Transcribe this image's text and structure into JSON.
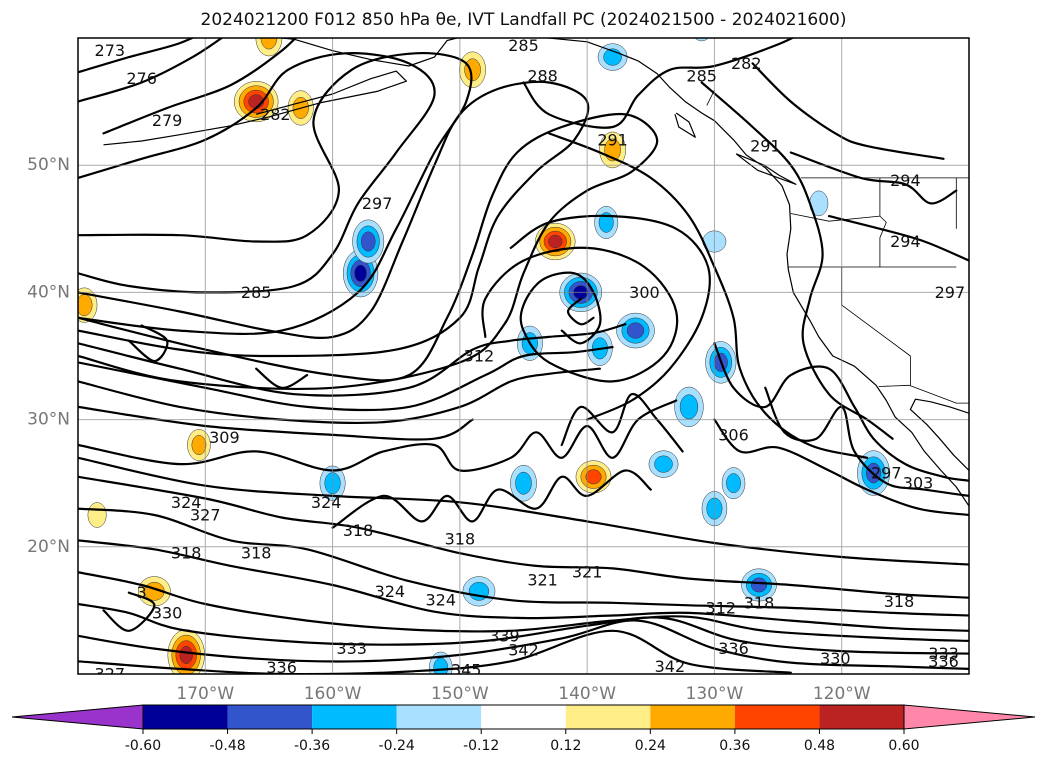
{
  "title": "2024021200 F012 850 hPa θe, IVT Landfall PC (2024021500 - 2024021600)",
  "map": {
    "projection": "PlateCarree",
    "extent": {
      "lon": [
        -180,
        -110
      ],
      "lat": [
        10,
        60
      ]
    },
    "lat_ticks": [
      {
        "value": 50,
        "label": "50°N"
      },
      {
        "value": 40,
        "label": "40°N"
      },
      {
        "value": 30,
        "label": "30°N"
      },
      {
        "value": 20,
        "label": "20°N"
      }
    ],
    "lon_ticks": [
      {
        "value": -170,
        "label": "170°W"
      },
      {
        "value": -160,
        "label": "160°W"
      },
      {
        "value": -150,
        "label": "150°W"
      },
      {
        "value": -140,
        "label": "140°W"
      },
      {
        "value": -130,
        "label": "130°W"
      },
      {
        "value": -120,
        "label": "120°W"
      }
    ],
    "grid": true,
    "contour_labels": [
      {
        "text": "273",
        "lon": -177.5,
        "lat": 59.0
      },
      {
        "text": "276",
        "lon": -175.0,
        "lat": 56.8
      },
      {
        "text": "279",
        "lon": -173.0,
        "lat": 53.5
      },
      {
        "text": "282",
        "lon": -164.5,
        "lat": 54.0
      },
      {
        "text": "285",
        "lon": -145.0,
        "lat": 59.4
      },
      {
        "text": "288",
        "lon": -143.5,
        "lat": 57.0
      },
      {
        "text": "285",
        "lon": -131.0,
        "lat": 57.0
      },
      {
        "text": "282",
        "lon": -127.5,
        "lat": 58.0
      },
      {
        "text": "291",
        "lon": -138.0,
        "lat": 52.0
      },
      {
        "text": "291",
        "lon": -126.0,
        "lat": 51.5
      },
      {
        "text": "294",
        "lon": -115.0,
        "lat": 48.8
      },
      {
        "text": "294",
        "lon": -115.0,
        "lat": 44.0
      },
      {
        "text": "297",
        "lon": -156.5,
        "lat": 47.0
      },
      {
        "text": "297",
        "lon": -111.5,
        "lat": 40.0
      },
      {
        "text": "285",
        "lon": -166.0,
        "lat": 40.0
      },
      {
        "text": "300",
        "lon": -135.5,
        "lat": 40.0
      },
      {
        "text": "312",
        "lon": -148.5,
        "lat": 35.0
      },
      {
        "text": "309",
        "lon": -168.5,
        "lat": 28.6
      },
      {
        "text": "306",
        "lon": -128.5,
        "lat": 28.8
      },
      {
        "text": "297",
        "lon": -116.5,
        "lat": 25.8
      },
      {
        "text": "303",
        "lon": -114.0,
        "lat": 25.0
      },
      {
        "text": "324",
        "lon": -171.5,
        "lat": 23.5
      },
      {
        "text": "327",
        "lon": -170.0,
        "lat": 22.5
      },
      {
        "text": "324",
        "lon": -160.5,
        "lat": 23.5
      },
      {
        "text": "318",
        "lon": -158.0,
        "lat": 21.3
      },
      {
        "text": "318",
        "lon": -150.0,
        "lat": 20.6
      },
      {
        "text": "318",
        "lon": -171.5,
        "lat": 19.5
      },
      {
        "text": "318",
        "lon": -166.0,
        "lat": 19.5
      },
      {
        "text": "321",
        "lon": -143.5,
        "lat": 17.4
      },
      {
        "text": "321",
        "lon": -140.0,
        "lat": 18.0
      },
      {
        "text": "324",
        "lon": -155.5,
        "lat": 16.5
      },
      {
        "text": "324",
        "lon": -151.5,
        "lat": 15.8
      },
      {
        "text": "330",
        "lon": -173.0,
        "lat": 14.8
      },
      {
        "text": "312",
        "lon": -129.5,
        "lat": 15.2
      },
      {
        "text": "318",
        "lon": -126.5,
        "lat": 15.6
      },
      {
        "text": "318",
        "lon": -115.5,
        "lat": 15.7
      },
      {
        "text": "339",
        "lon": -146.5,
        "lat": 13.0
      },
      {
        "text": "342",
        "lon": -145.0,
        "lat": 11.9
      },
      {
        "text": "333",
        "lon": -158.5,
        "lat": 12.0
      },
      {
        "text": "336",
        "lon": -128.5,
        "lat": 12.0
      },
      {
        "text": "336",
        "lon": -164.0,
        "lat": 10.5
      },
      {
        "text": "345",
        "lon": -149.5,
        "lat": 10.3
      },
      {
        "text": "342",
        "lon": -133.5,
        "lat": 10.6
      },
      {
        "text": "330",
        "lon": -120.5,
        "lat": 11.2
      },
      {
        "text": "333",
        "lon": -112.0,
        "lat": 11.6
      },
      {
        "text": "336",
        "lon": -112.0,
        "lat": 11.0
      },
      {
        "text": "327",
        "lon": -177.5,
        "lat": 10.0
      },
      {
        "text": "3",
        "lon": -175.0,
        "lat": 16.4
      }
    ],
    "ivt_pc_patches": [
      {
        "lon": -157.8,
        "lat": 41.5,
        "value": -0.55
      },
      {
        "lon": -157.2,
        "lat": 44.0,
        "value": -0.4
      },
      {
        "lon": -140.5,
        "lat": 40.0,
        "value": -0.52
      },
      {
        "lon": -144.5,
        "lat": 36.0,
        "value": -0.35
      },
      {
        "lon": -139.0,
        "lat": 35.6,
        "value": -0.28
      },
      {
        "lon": -136.2,
        "lat": 37.0,
        "value": -0.45
      },
      {
        "lon": -129.5,
        "lat": 34.5,
        "value": -0.46
      },
      {
        "lon": -132.0,
        "lat": 31.0,
        "value": -0.35
      },
      {
        "lon": -134.0,
        "lat": 26.5,
        "value": -0.3
      },
      {
        "lon": -128.5,
        "lat": 25.0,
        "value": -0.3
      },
      {
        "lon": -130.0,
        "lat": 23.0,
        "value": -0.28
      },
      {
        "lon": -126.5,
        "lat": 17.0,
        "value": -0.4
      },
      {
        "lon": -160.0,
        "lat": 25.0,
        "value": -0.35
      },
      {
        "lon": -145.0,
        "lat": 25.0,
        "value": -0.3
      },
      {
        "lon": -148.5,
        "lat": 16.5,
        "value": -0.35
      },
      {
        "lon": -151.5,
        "lat": 10.5,
        "value": -0.3
      },
      {
        "lon": -117.5,
        "lat": 25.8,
        "value": -0.42
      },
      {
        "lon": -138.0,
        "lat": 58.5,
        "value": -0.3
      },
      {
        "lon": -131.0,
        "lat": 61.0,
        "value": -0.3
      },
      {
        "lon": -138.5,
        "lat": 45.5,
        "value": -0.25
      },
      {
        "lon": -130.0,
        "lat": 44.0,
        "value": -0.2
      },
      {
        "lon": -121.8,
        "lat": 47.0,
        "value": -0.2
      },
      {
        "lon": -165.0,
        "lat": 60.0,
        "value": 0.3
      },
      {
        "lon": -166.0,
        "lat": 55.0,
        "value": 0.55
      },
      {
        "lon": -162.5,
        "lat": 54.5,
        "value": 0.35
      },
      {
        "lon": -149.0,
        "lat": 57.5,
        "value": 0.3
      },
      {
        "lon": -142.5,
        "lat": 44.0,
        "value": 0.48
      },
      {
        "lon": -179.5,
        "lat": 39.0,
        "value": 0.35
      },
      {
        "lon": -138.0,
        "lat": 51.2,
        "value": 0.3
      },
      {
        "lon": -139.5,
        "lat": 25.5,
        "value": 0.4
      },
      {
        "lon": -170.5,
        "lat": 28.0,
        "value": 0.3
      },
      {
        "lon": -171.5,
        "lat": 11.5,
        "value": 0.5
      },
      {
        "lon": -174.0,
        "lat": 16.5,
        "value": 0.35
      },
      {
        "lon": -178.5,
        "lat": 22.5,
        "value": 0.2
      }
    ]
  },
  "colorbar": {
    "ticks": [
      "-0.60",
      "-0.48",
      "-0.36",
      "-0.24",
      "-0.12",
      "0.12",
      "0.24",
      "0.36",
      "0.48",
      "0.60"
    ],
    "boundaries": [
      -0.6,
      -0.48,
      -0.36,
      -0.24,
      -0.12,
      0.12,
      0.24,
      0.36,
      0.48,
      0.6
    ],
    "colors": [
      "#9933cc",
      "#000099",
      "#3355cc",
      "#00bbff",
      "#aae0ff",
      "#ffffff",
      "#ffee88",
      "#ffaa00",
      "#ff4400",
      "#bb2222",
      "#ff88aa"
    ],
    "extend": "both"
  }
}
